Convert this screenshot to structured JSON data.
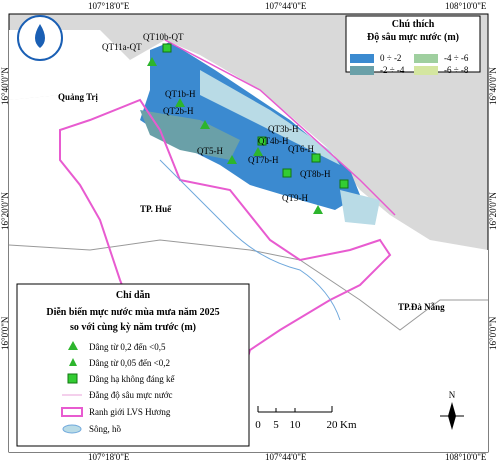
{
  "coordinates": {
    "top": [
      "107°18'0\"E",
      "107°44'0\"E",
      "108°10'0\"E"
    ],
    "bottom": [
      "107°18'0\"E",
      "107°44'0\"E",
      "108°10'0\"E"
    ],
    "left": [
      "16°40'0\"N",
      "16°20'0\"N",
      "16°0'0\"N"
    ],
    "right": [
      "16°40'0\"N",
      "16°20'0\"N",
      "16°0'0\"N"
    ]
  },
  "places": [
    "Quảng Trị",
    "TP. Huế",
    "TP.Đà Nẵng"
  ],
  "wells": [
    {
      "label": "QT10b-QT",
      "symbol": "square"
    },
    {
      "label": "QT11a-QT",
      "symbol": "triangle"
    },
    {
      "label": "QT1b-H",
      "symbol": "triangle"
    },
    {
      "label": "QT2b-H",
      "symbol": "triangle"
    },
    {
      "label": "QT3b-H",
      "symbol": "square"
    },
    {
      "label": "QT4b-H",
      "symbol": "triangle"
    },
    {
      "label": "QT5-H",
      "symbol": "triangle"
    },
    {
      "label": "QT6-H",
      "symbol": "square"
    },
    {
      "label": "QT7b-H",
      "symbol": "square"
    },
    {
      "label": "QT8b-H",
      "symbol": "square"
    },
    {
      "label": "QT9-H",
      "symbol": "triangle"
    }
  ],
  "legend_depth": {
    "title": "Chú thích",
    "subtitle": "Độ sâu mực nước (m)",
    "items": [
      "0 ÷ -2",
      "-4 ÷ -6",
      "-2 ÷ -4",
      "-6 ÷ -8"
    ]
  },
  "legend_trend": {
    "title": "Chỉ dẫn",
    "subtitle": [
      "Diễn biến mực nước mùa mưa năm 2025",
      "so với cùng kỳ năm trước (m)"
    ],
    "items": [
      "Dâng từ 0,2 đến <0,5",
      "Dâng từ 0,05 đến <0,2",
      "Dâng hạ không đáng kể",
      "Đẳng độ sâu mực nước",
      "Ranh giới LVS Hương",
      "Sông, hồ"
    ]
  },
  "scale_bar": {
    "labels": [
      "0",
      "5",
      "10",
      "20"
    ],
    "unit": "Km"
  },
  "north": "N"
}
